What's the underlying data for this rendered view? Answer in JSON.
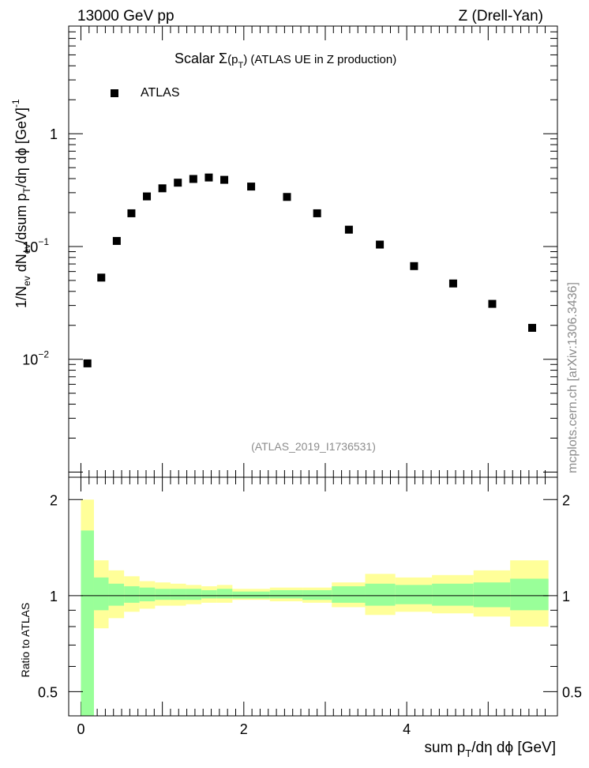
{
  "header": {
    "left": "13000 GeV pp",
    "right": "Z (Drell-Yan)"
  },
  "plot_title": {
    "prefix": "Scalar ",
    "sigma": "Σ",
    "p": "(p",
    "sub": "T",
    "suffix": ") (ATLAS UE in Z production)"
  },
  "legend": {
    "entry": "ATLAS"
  },
  "analysis_id": "(ATLAS_2019_I1736531)",
  "side_label": "mcplots.cern.ch [arXiv:1306.3436]",
  "y_axis_top": {
    "label": "1/N_ev dN_ev/dsum p_T/dη dϕ [GeV]^-1",
    "ticks": [
      {
        "value": 1,
        "label": "1"
      },
      {
        "value": 0.1,
        "label": "10",
        "exp": "−1"
      },
      {
        "value": 0.01,
        "label": "10",
        "exp": "−2"
      }
    ]
  },
  "y_axis_bottom": {
    "label": "Ratio to ATLAS",
    "ticks": [
      "0.5",
      "1",
      "2"
    ]
  },
  "x_axis": {
    "label": "sum p_T/dη dϕ [GeV]",
    "ticks": [
      "0",
      "2",
      "4"
    ]
  },
  "colors": {
    "band_inner": "#99ff99",
    "band_outer": "#ffff99",
    "marker": "#000000"
  },
  "chart_data": [
    {
      "type": "scatter",
      "title": "Scalar Σ(p_T) (ATLAS UE in Z production)",
      "xlabel": "sum p_T/dη dϕ [GeV]",
      "ylabel": "1/N_ev dN_ev/dsum p_T/dη dϕ [GeV]^-1",
      "yscale": "log",
      "xlim": [
        -0.15,
        5.85
      ],
      "ylim": [
        0.0009,
        9
      ],
      "legend_position": "top-left",
      "series": [
        {
          "name": "ATLAS",
          "x": [
            0.08,
            0.25,
            0.44,
            0.62,
            0.81,
            1.0,
            1.19,
            1.38,
            1.57,
            1.76,
            2.09,
            2.53,
            2.9,
            3.29,
            3.67,
            4.09,
            4.57,
            5.05,
            5.54
          ],
          "y": [
            0.0092,
            0.053,
            0.112,
            0.197,
            0.278,
            0.328,
            0.368,
            0.397,
            0.409,
            0.39,
            0.34,
            0.275,
            0.197,
            0.141,
            0.104,
            0.067,
            0.047,
            0.031,
            0.019
          ]
        }
      ]
    },
    {
      "type": "area",
      "title": "",
      "xlabel": "sum p_T/dη dϕ [GeV]",
      "ylabel": "Ratio to ATLAS",
      "yscale": "log",
      "xlim": [
        -0.15,
        5.85
      ],
      "ylim": [
        0.42,
        2.35
      ],
      "reference_line": 1,
      "bins": [
        {
          "x0": 0.0,
          "x1": 0.16,
          "inner": [
            0.42,
            1.6
          ],
          "outer": [
            0.42,
            2.0
          ]
        },
        {
          "x0": 0.16,
          "x1": 0.34,
          "inner": [
            0.9,
            1.14
          ],
          "outer": [
            0.79,
            1.29
          ]
        },
        {
          "x0": 0.34,
          "x1": 0.53,
          "inner": [
            0.93,
            1.09
          ],
          "outer": [
            0.85,
            1.2
          ]
        },
        {
          "x0": 0.53,
          "x1": 0.72,
          "inner": [
            0.95,
            1.07
          ],
          "outer": [
            0.89,
            1.15
          ]
        },
        {
          "x0": 0.72,
          "x1": 0.91,
          "inner": [
            0.96,
            1.06
          ],
          "outer": [
            0.91,
            1.11
          ]
        },
        {
          "x0": 0.91,
          "x1": 1.1,
          "inner": [
            0.97,
            1.05
          ],
          "outer": [
            0.93,
            1.1
          ]
        },
        {
          "x0": 1.1,
          "x1": 1.29,
          "inner": [
            0.97,
            1.05
          ],
          "outer": [
            0.93,
            1.09
          ]
        },
        {
          "x0": 1.29,
          "x1": 1.48,
          "inner": [
            0.97,
            1.05
          ],
          "outer": [
            0.94,
            1.08
          ]
        },
        {
          "x0": 1.48,
          "x1": 1.67,
          "inner": [
            0.98,
            1.04
          ],
          "outer": [
            0.95,
            1.07
          ]
        },
        {
          "x0": 1.67,
          "x1": 1.86,
          "inner": [
            0.98,
            1.05
          ],
          "outer": [
            0.95,
            1.08
          ]
        },
        {
          "x0": 1.86,
          "x1": 2.32,
          "inner": [
            0.98,
            1.03
          ],
          "outer": [
            0.97,
            1.05
          ]
        },
        {
          "x0": 2.32,
          "x1": 2.72,
          "inner": [
            0.98,
            1.04
          ],
          "outer": [
            0.96,
            1.06
          ]
        },
        {
          "x0": 2.72,
          "x1": 3.08,
          "inner": [
            0.97,
            1.04
          ],
          "outer": [
            0.95,
            1.06
          ]
        },
        {
          "x0": 3.08,
          "x1": 3.49,
          "inner": [
            0.95,
            1.07
          ],
          "outer": [
            0.92,
            1.1
          ]
        },
        {
          "x0": 3.49,
          "x1": 3.86,
          "inner": [
            0.93,
            1.09
          ],
          "outer": [
            0.87,
            1.17
          ]
        },
        {
          "x0": 3.86,
          "x1": 4.31,
          "inner": [
            0.94,
            1.08
          ],
          "outer": [
            0.89,
            1.14
          ]
        },
        {
          "x0": 4.31,
          "x1": 4.82,
          "inner": [
            0.93,
            1.09
          ],
          "outer": [
            0.88,
            1.16
          ]
        },
        {
          "x0": 4.82,
          "x1": 5.27,
          "inner": [
            0.92,
            1.1
          ],
          "outer": [
            0.86,
            1.2
          ]
        },
        {
          "x0": 5.27,
          "x1": 5.74,
          "inner": [
            0.9,
            1.13
          ],
          "outer": [
            0.8,
            1.29
          ]
        }
      ]
    }
  ]
}
